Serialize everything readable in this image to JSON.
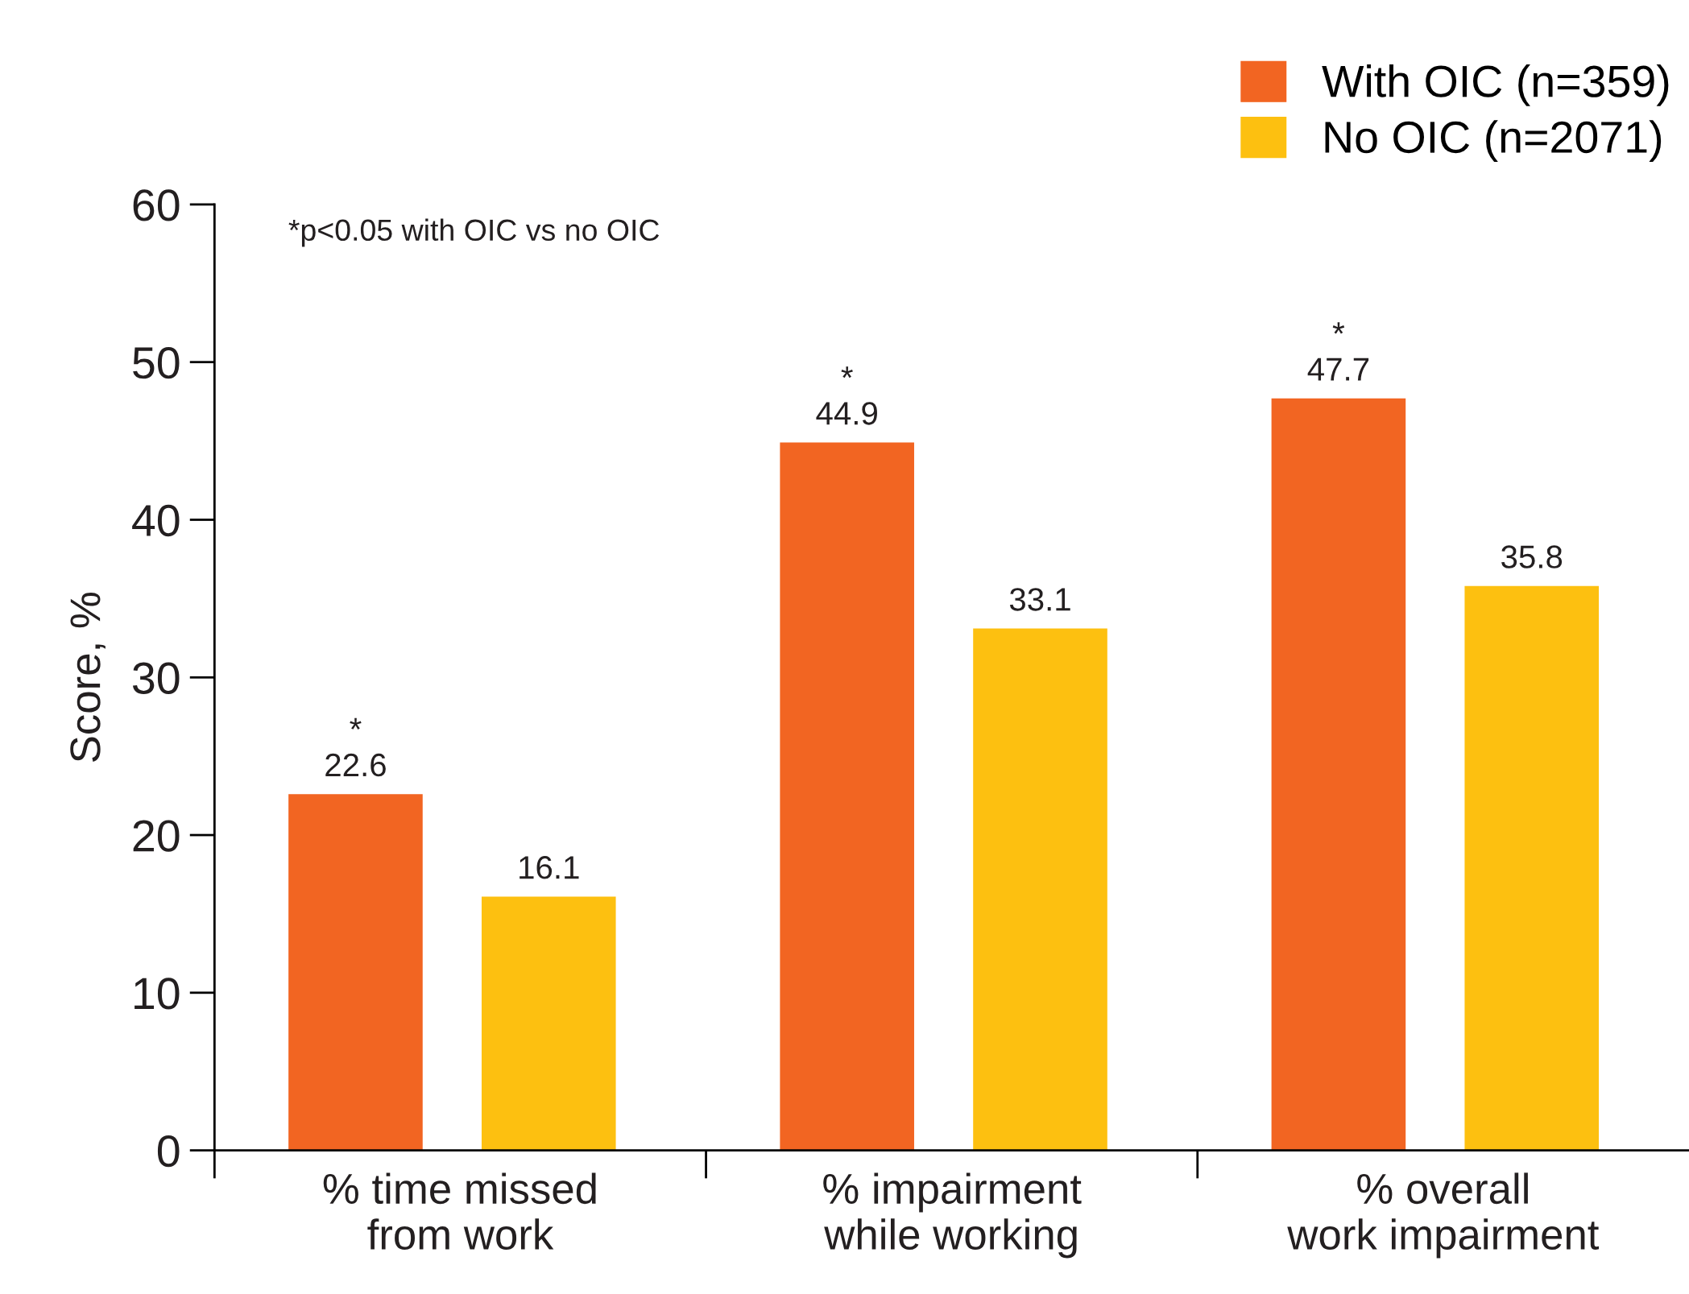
{
  "chart_data": {
    "type": "bar",
    "ylabel": "Score, %",
    "categories": [
      "% time missed\nfrom work",
      "% impairment\nwhile working",
      "% overall\nwork impairment"
    ],
    "series": [
      {
        "name": "With OIC (n=359)",
        "color": "#f26522",
        "values": [
          22.6,
          44.9,
          47.7
        ]
      },
      {
        "name": "No OIC (n=2071)",
        "color": "#fdc010",
        "values": [
          16.1,
          33.1,
          35.8
        ]
      }
    ],
    "ylim": [
      0,
      60
    ],
    "yticks": [
      0,
      10,
      20,
      30,
      40,
      50,
      60
    ],
    "data_labels": true,
    "grid": false,
    "legend": "top right",
    "annotations": [
      "*p<0.05 with OIC vs no OIC",
      "*",
      "*",
      "*"
    ]
  }
}
